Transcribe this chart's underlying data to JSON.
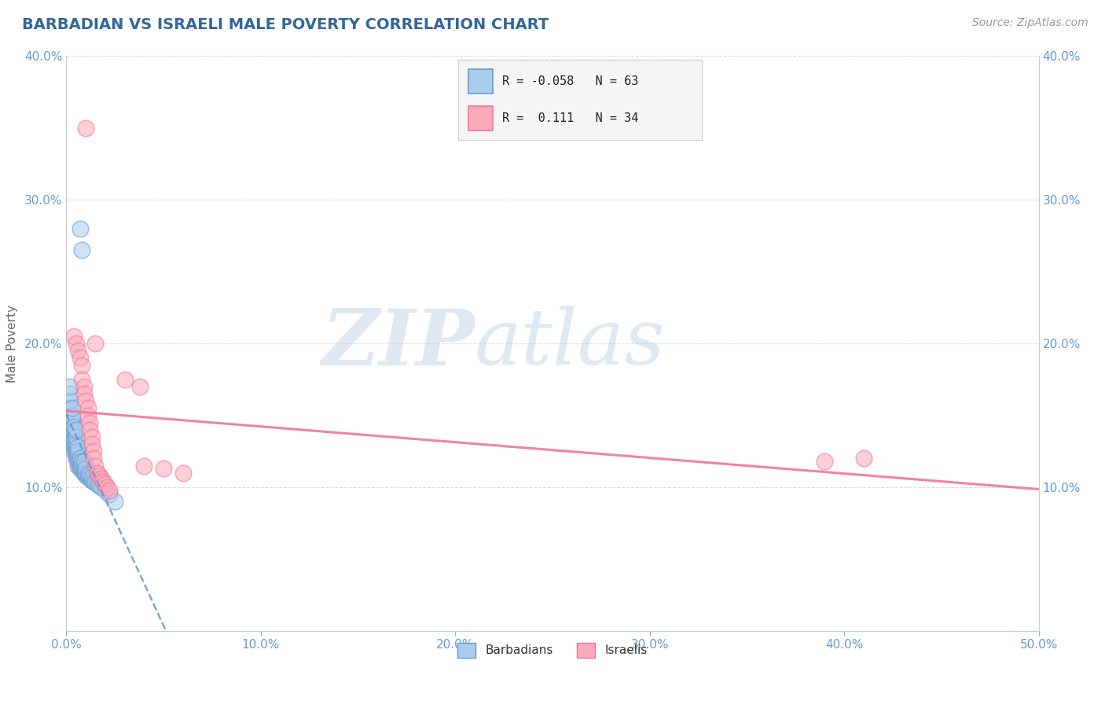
{
  "title": "BARBADIAN VS ISRAELI MALE POVERTY CORRELATION CHART",
  "source_text": "Source: ZipAtlas.com",
  "ylabel": "Male Poverty",
  "xlim": [
    0,
    0.5
  ],
  "ylim": [
    0,
    0.4
  ],
  "xticks": [
    0.0,
    0.1,
    0.2,
    0.3,
    0.4,
    0.5
  ],
  "xtick_labels": [
    "0.0%",
    "10.0%",
    "20.0%",
    "30.0%",
    "40.0%",
    "50.0%"
  ],
  "yticks": [
    0.0,
    0.1,
    0.2,
    0.3,
    0.4
  ],
  "ytick_labels": [
    "",
    "10.0%",
    "20.0%",
    "30.0%",
    "40.0%"
  ],
  "barbadian_color": "#6699CC",
  "barbadian_color_fill": "#AACCEE",
  "israeli_color": "#EE7799",
  "israeli_color_fill": "#FFAABB",
  "R_barbadian": -0.058,
  "N_barbadian": 63,
  "R_israeli": 0.111,
  "N_israeli": 34,
  "legend_label_barbadian": "Barbadians",
  "legend_label_israeli": "Israelis",
  "watermark_zip": "ZIP",
  "watermark_atlas": "atlas",
  "background_color": "#FFFFFF",
  "grid_color": "#CCCCCC",
  "title_color": "#336699",
  "axis_label_color": "#666666",
  "tick_label_color": "#6699CC",
  "barbadian_x": [
    0.002,
    0.002,
    0.002,
    0.002,
    0.003,
    0.003,
    0.003,
    0.003,
    0.003,
    0.003,
    0.003,
    0.003,
    0.004,
    0.004,
    0.004,
    0.004,
    0.004,
    0.004,
    0.004,
    0.004,
    0.005,
    0.005,
    0.005,
    0.005,
    0.005,
    0.005,
    0.005,
    0.006,
    0.006,
    0.006,
    0.006,
    0.006,
    0.006,
    0.007,
    0.007,
    0.007,
    0.007,
    0.007,
    0.008,
    0.008,
    0.008,
    0.008,
    0.009,
    0.009,
    0.009,
    0.009,
    0.01,
    0.01,
    0.01,
    0.011,
    0.011,
    0.012,
    0.012,
    0.013,
    0.013,
    0.014,
    0.015,
    0.016,
    0.017,
    0.018,
    0.02,
    0.022,
    0.025
  ],
  "barbadian_y": [
    0.155,
    0.16,
    0.165,
    0.17,
    0.13,
    0.133,
    0.136,
    0.14,
    0.145,
    0.148,
    0.15,
    0.155,
    0.125,
    0.128,
    0.13,
    0.133,
    0.135,
    0.138,
    0.14,
    0.142,
    0.12,
    0.122,
    0.125,
    0.127,
    0.13,
    0.135,
    0.14,
    0.115,
    0.118,
    0.12,
    0.123,
    0.125,
    0.128,
    0.113,
    0.115,
    0.118,
    0.12,
    0.28,
    0.112,
    0.115,
    0.118,
    0.265,
    0.11,
    0.112,
    0.115,
    0.118,
    0.108,
    0.11,
    0.113,
    0.107,
    0.109,
    0.106,
    0.108,
    0.105,
    0.107,
    0.104,
    0.103,
    0.102,
    0.101,
    0.1,
    0.098,
    0.095,
    0.09
  ],
  "israeli_x": [
    0.004,
    0.005,
    0.006,
    0.007,
    0.008,
    0.008,
    0.009,
    0.009,
    0.01,
    0.01,
    0.011,
    0.011,
    0.012,
    0.012,
    0.013,
    0.013,
    0.014,
    0.014,
    0.015,
    0.015,
    0.016,
    0.017,
    0.018,
    0.019,
    0.02,
    0.021,
    0.022,
    0.03,
    0.038,
    0.04,
    0.05,
    0.06,
    0.39,
    0.41
  ],
  "israeli_y": [
    0.205,
    0.2,
    0.195,
    0.19,
    0.185,
    0.175,
    0.17,
    0.165,
    0.16,
    0.35,
    0.155,
    0.15,
    0.145,
    0.14,
    0.135,
    0.13,
    0.125,
    0.12,
    0.115,
    0.2,
    0.11,
    0.108,
    0.106,
    0.104,
    0.102,
    0.1,
    0.098,
    0.175,
    0.17,
    0.115,
    0.113,
    0.11,
    0.118,
    0.12
  ]
}
